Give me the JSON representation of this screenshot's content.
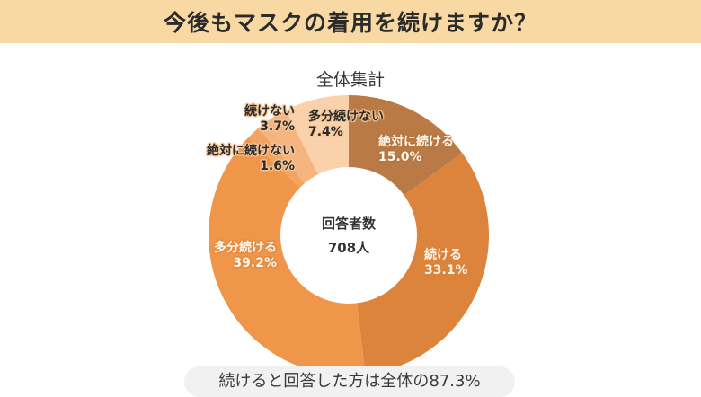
{
  "header": {
    "title": "今後もマスクの着用を続けますか？"
  },
  "chart": {
    "subtitle": "全体集計",
    "center_label": "回答者数",
    "center_value": "708人"
  },
  "labels": {
    "zettai_tsuzukeru": {
      "name": "絶対に続ける",
      "value": "15.0%"
    },
    "tsuzukeru": {
      "name": "続ける",
      "value": "33.1%"
    },
    "tabun_tsuzukeru": {
      "name": "多分続ける",
      "value": "39.2%"
    },
    "zettai_tsuzukenai": {
      "name": "絶対に続けない",
      "value": "1.6%"
    },
    "tsuzukenai": {
      "name": "続けない",
      "value": "3.7%"
    },
    "tabun_tsuzukenai": {
      "name": "多分続けない",
      "value": "7.4%"
    }
  },
  "footer": {
    "summary": "続けると回答した方は全体の87.3%"
  },
  "colors": {
    "header_bg": "#f8d9a3",
    "zettai_tsuzukeru": "#b97a45",
    "tsuzukeru": "#dc843c",
    "tabun_tsuzukeru": "#f0964a",
    "zettai_tsuzukenai": "#f2a560",
    "tsuzukenai": "#f6b57e",
    "tabun_tsuzukenai": "#f9d2ab"
  },
  "chart_data": {
    "type": "pie",
    "title": "今後もマスクの着用を続けますか？",
    "subtitle": "全体集計",
    "donut": true,
    "center_text": "回答者数 708人",
    "categories": [
      "絶対に続ける",
      "続ける",
      "多分続ける",
      "絶対に続けない",
      "続けない",
      "多分続けない"
    ],
    "values": [
      15.0,
      33.1,
      39.2,
      1.6,
      3.7,
      7.4
    ],
    "unit": "%",
    "total_respondents": 708,
    "annotation": "続けると回答した方は全体の87.3%"
  }
}
